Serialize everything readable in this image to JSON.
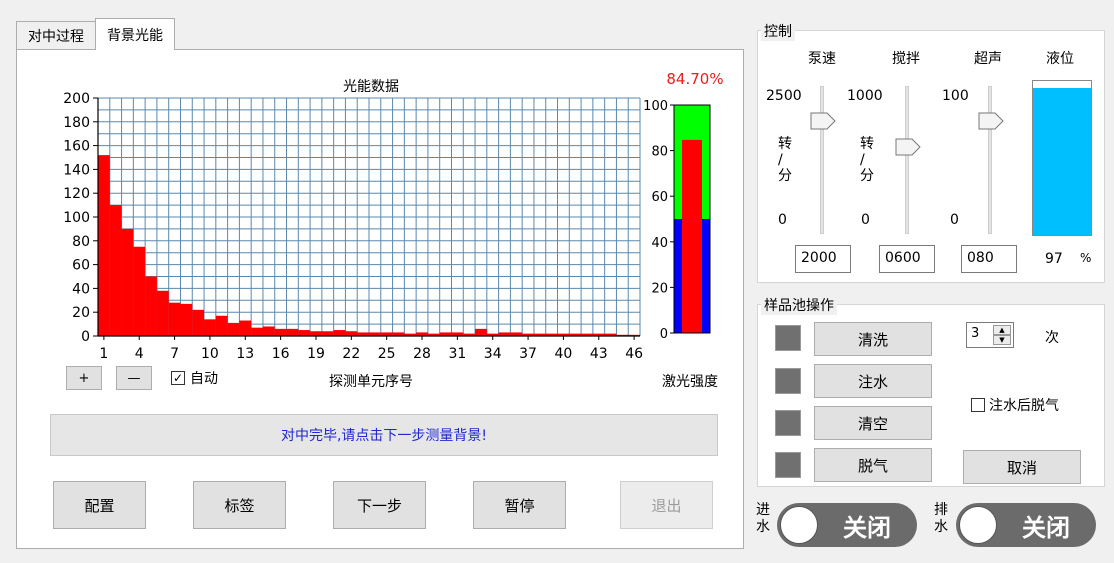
{
  "tabs": [
    {
      "label": "对中过程",
      "active": false
    },
    {
      "label": "背景光能",
      "active": true
    }
  ],
  "chart": {
    "percent_text": "84.70%",
    "percent_color": "#e62020",
    "bar_color": "#ff0000",
    "laser_label": "激光强度",
    "laser_ticks": [
      "100",
      "80",
      "60",
      "40",
      "20",
      "0"
    ]
  },
  "chart_data": {
    "type": "bar",
    "title": "光能数据",
    "xlabel": "探测单元序号",
    "ylabel": "",
    "ylim": [
      0,
      200
    ],
    "y_ticks": [
      "200",
      "180",
      "160",
      "140",
      "120",
      "100",
      "80",
      "60",
      "40",
      "20",
      "0"
    ],
    "x_tick_labels": [
      "1",
      "4",
      "7",
      "10",
      "13",
      "16",
      "19",
      "22",
      "25",
      "28",
      "31",
      "34",
      "37",
      "40",
      "43",
      "46"
    ],
    "categories": [
      1,
      2,
      3,
      4,
      5,
      6,
      7,
      8,
      9,
      10,
      11,
      12,
      13,
      14,
      15,
      16,
      17,
      18,
      19,
      20,
      21,
      22,
      23,
      24,
      25,
      26,
      27,
      28,
      29,
      30,
      31,
      32,
      33,
      34,
      35,
      36,
      37,
      38,
      39,
      40,
      41,
      42,
      43,
      44,
      45,
      46
    ],
    "values": [
      152,
      110,
      90,
      75,
      50,
      38,
      28,
      27,
      22,
      14,
      17,
      11,
      13,
      7,
      8,
      6,
      6,
      5,
      4,
      4,
      5,
      4,
      3,
      3,
      3,
      3,
      2,
      3,
      2,
      3,
      3,
      2,
      6,
      2,
      3,
      3,
      2,
      2,
      2,
      2,
      2,
      2,
      2,
      2,
      1,
      1
    ],
    "laser": {
      "ylim": [
        0,
        100
      ],
      "value": 84.7,
      "segments": [
        {
          "name": "green",
          "from": 0,
          "to": 100,
          "color": "#00ff00"
        },
        {
          "name": "blue",
          "from": 0,
          "to": 50,
          "color": "#0000ff"
        }
      ],
      "bar_value": 84.7,
      "bar_color": "#ff0000"
    }
  },
  "chart_controls": {
    "zoom_in": "+",
    "zoom_out": "—",
    "auto_label": "自动",
    "auto_checked": "✓"
  },
  "status_message": "对中完毕,请点击下一步测量背景!",
  "status_color": "#1f27d0",
  "bottom_buttons": {
    "config": "配置",
    "label": "标签",
    "next": "下一步",
    "pause": "暂停",
    "exit": "退出"
  },
  "control": {
    "title": "控制",
    "pump": {
      "label": "泵速",
      "max": "2500",
      "min": "0",
      "unit": "转\n/\n分",
      "value": "2000",
      "fraction": 0.8
    },
    "stir": {
      "label": "搅拌",
      "max": "1000",
      "min": "0",
      "unit": "转\n/\n分",
      "value": "0600",
      "fraction": 0.6
    },
    "ultra": {
      "label": "超声",
      "max": "100",
      "min": "0",
      "value": "080",
      "fraction": 0.8
    },
    "level": {
      "label": "液位",
      "value": "97",
      "unit": "%",
      "color": "#00bfff",
      "fraction": 0.97
    }
  },
  "sample_pool": {
    "title": "样品池操作",
    "clean": "清洗",
    "fill": "注水",
    "empty": "清空",
    "degas": "脱气",
    "cancel": "取消",
    "count_value": "3",
    "count_unit": "次",
    "degas_after_fill": "注水后脱气"
  },
  "switches": {
    "inlet_label": "进\n水",
    "outlet_label": "排\n水",
    "inlet_state": "关闭",
    "outlet_state": "关闭"
  }
}
